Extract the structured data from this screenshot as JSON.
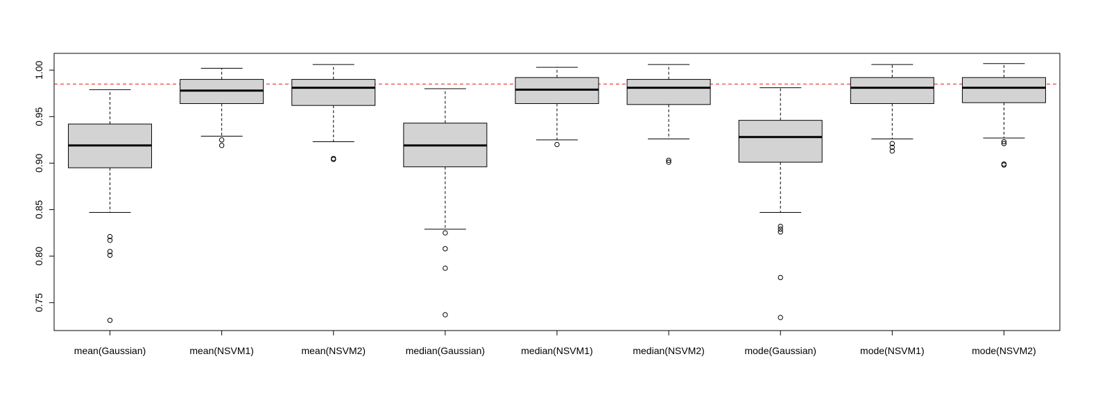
{
  "chart_data": {
    "type": "boxplot",
    "title": "",
    "xlabel": "",
    "ylabel": "",
    "ylim": [
      0.72,
      1.018
    ],
    "y_ticks": [
      0.75,
      0.8,
      0.85,
      0.9,
      0.95,
      1.0
    ],
    "y_tick_labels": [
      "0.75",
      "0.80",
      "0.85",
      "0.90",
      "0.95",
      "1.00"
    ],
    "reference_line": {
      "value": 0.985,
      "color": "#e8312f",
      "style": "dashed"
    },
    "box_fill": "#d3d3d3",
    "categories": [
      "mean(Gaussian)",
      "mean(NSVM1)",
      "mean(NSVM2)",
      "median(Gaussian)",
      "median(NSVM1)",
      "median(NSVM2)",
      "mode(Gaussian)",
      "mode(NSVM1)",
      "mode(NSVM2)"
    ],
    "boxes": [
      {
        "name": "mean(Gaussian)",
        "whisker_low": 0.847,
        "q1": 0.895,
        "median": 0.919,
        "q3": 0.942,
        "whisker_high": 0.979,
        "outliers": [
          0.821,
          0.817,
          0.805,
          0.801,
          0.731
        ]
      },
      {
        "name": "mean(NSVM1)",
        "whisker_low": 0.929,
        "q1": 0.964,
        "median": 0.978,
        "q3": 0.99,
        "whisker_high": 1.002,
        "outliers": [
          0.925,
          0.919
        ]
      },
      {
        "name": "mean(NSVM2)",
        "whisker_low": 0.923,
        "q1": 0.962,
        "median": 0.981,
        "q3": 0.99,
        "whisker_high": 1.006,
        "outliers": [
          0.905,
          0.904
        ]
      },
      {
        "name": "median(Gaussian)",
        "whisker_low": 0.829,
        "q1": 0.896,
        "median": 0.919,
        "q3": 0.943,
        "whisker_high": 0.98,
        "outliers": [
          0.825,
          0.808,
          0.787,
          0.737
        ]
      },
      {
        "name": "median(NSVM1)",
        "whisker_low": 0.925,
        "q1": 0.964,
        "median": 0.979,
        "q3": 0.992,
        "whisker_high": 1.003,
        "outliers": [
          0.92
        ]
      },
      {
        "name": "median(NSVM2)",
        "whisker_low": 0.926,
        "q1": 0.963,
        "median": 0.981,
        "q3": 0.99,
        "whisker_high": 1.006,
        "outliers": [
          0.903,
          0.901
        ]
      },
      {
        "name": "mode(Gaussian)",
        "whisker_low": 0.847,
        "q1": 0.901,
        "median": 0.928,
        "q3": 0.946,
        "whisker_high": 0.981,
        "outliers": [
          0.832,
          0.829,
          0.826,
          0.777,
          0.734
        ]
      },
      {
        "name": "mode(NSVM1)",
        "whisker_low": 0.926,
        "q1": 0.964,
        "median": 0.981,
        "q3": 0.992,
        "whisker_high": 1.006,
        "outliers": [
          0.921,
          0.917,
          0.913
        ]
      },
      {
        "name": "mode(NSVM2)",
        "whisker_low": 0.927,
        "q1": 0.965,
        "median": 0.981,
        "q3": 0.992,
        "whisker_high": 1.007,
        "outliers": [
          0.923,
          0.921,
          0.899,
          0.898
        ]
      }
    ]
  }
}
